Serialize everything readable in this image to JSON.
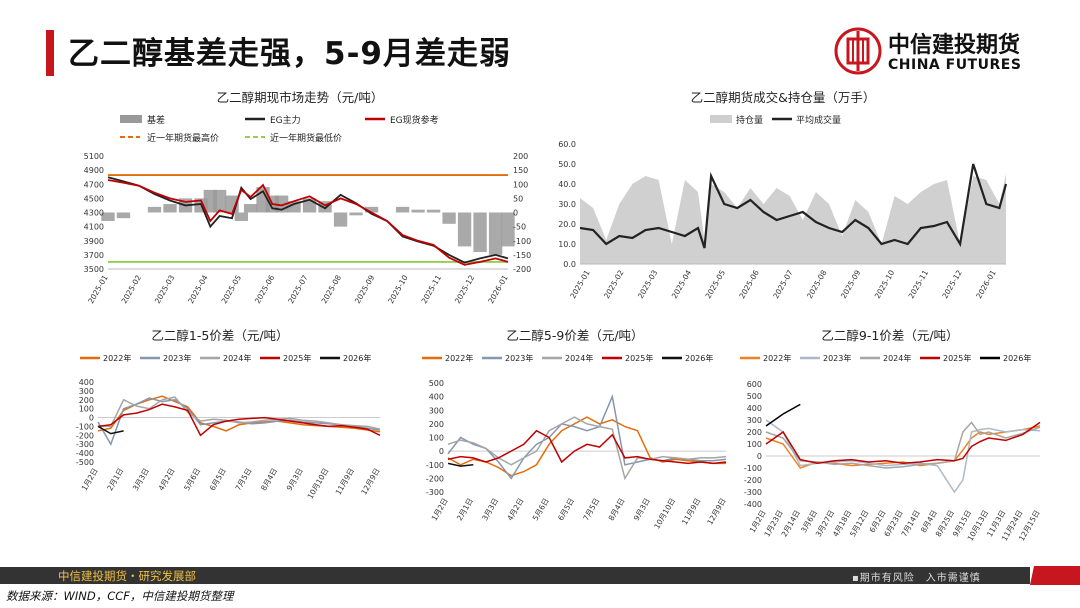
{
  "page": {
    "title": "乙二醇基差走强，5-9月差走弱",
    "logo": {
      "cn": "中信建投期货",
      "en": "CHINA FUTURES"
    },
    "footer": {
      "left": "中信建投期货・研究发展部",
      "right": "▪期市有风险　入市需谨慎"
    },
    "source": "数据来源：WIND，CCF，中信建投期货整理"
  },
  "chart_data": [
    {
      "id": "spot",
      "type": "line",
      "title": "乙二醇期现市场走势（元/吨）",
      "legend": [
        "基差",
        "EG主力",
        "EG现货参考",
        "近一年期货最高价",
        "近一年期货最低价"
      ],
      "x_ticks": [
        "2025-01",
        "2025-02",
        "2025-03",
        "2025-04",
        "2025-05",
        "2025-06",
        "2025-07",
        "2025-08",
        "2025-09",
        "2025-10",
        "2025-11",
        "2025-12",
        "2026-01"
      ],
      "y_left": {
        "min": 3500,
        "max": 5100,
        "ticks": [
          3500,
          3700,
          3900,
          4100,
          4300,
          4500,
          4700,
          4900,
          5100
        ]
      },
      "y_right": {
        "min": -200,
        "max": 200,
        "ticks": [
          -200,
          -150,
          -100,
          -50,
          0,
          50,
          100,
          150,
          200
        ]
      },
      "hline_high": 4830,
      "hline_low": 3600,
      "x": [
        0,
        0.5,
        1,
        1.5,
        2,
        2.5,
        3,
        3.3,
        3.6,
        4,
        4.3,
        4.6,
        5,
        5.3,
        5.6,
        6,
        6.5,
        7,
        7.5,
        8,
        8.5,
        9,
        9.5,
        10,
        10.5,
        11,
        11.5,
        12,
        12.5,
        12.9
      ],
      "eg_main": [
        4800,
        4740,
        4680,
        4560,
        4470,
        4400,
        4420,
        4100,
        4250,
        4220,
        4650,
        4490,
        4600,
        4360,
        4340,
        4420,
        4480,
        4360,
        4550,
        4430,
        4280,
        4180,
        3960,
        3890,
        3830,
        3700,
        3590,
        3650,
        3700,
        3650
      ],
      "eg_spot": [
        4760,
        4720,
        4680,
        4580,
        4500,
        4450,
        4470,
        4180,
        4330,
        4280,
        4620,
        4520,
        4690,
        4420,
        4400,
        4460,
        4530,
        4400,
        4500,
        4420,
        4300,
        4180,
        3980,
        3900,
        3840,
        3660,
        3560,
        3600,
        3650,
        3600
      ],
      "basis": [
        -30,
        -20,
        0,
        20,
        30,
        50,
        50,
        80,
        80,
        60,
        -30,
        30,
        90,
        60,
        60,
        40,
        50,
        40,
        -50,
        -10,
        20,
        0,
        20,
        10,
        10,
        -40,
        -120,
        -140,
        -150,
        -120
      ]
    },
    {
      "id": "volume",
      "type": "area",
      "title": "乙二醇期货成交&持仓量（万手）",
      "legend": [
        "持仓量",
        "平均成交量"
      ],
      "x_ticks": [
        "2025-01",
        "2025-02",
        "2025-03",
        "2025-04",
        "2025-05",
        "2025-06",
        "2025-07",
        "2025-08",
        "2025-09",
        "2025-10",
        "2025-11",
        "2025-12",
        "2026-01"
      ],
      "y": {
        "min": 0,
        "max": 60,
        "ticks": [
          0,
          10,
          20,
          30,
          40,
          50,
          60
        ]
      },
      "x": [
        0,
        0.4,
        0.8,
        1.2,
        1.6,
        2,
        2.4,
        2.8,
        3.2,
        3.6,
        3.8,
        4,
        4.4,
        4.8,
        5.2,
        5.6,
        6,
        6.4,
        6.8,
        7.2,
        7.6,
        8,
        8.4,
        8.8,
        9.2,
        9.6,
        10,
        10.4,
        10.8,
        11.2,
        11.6,
        12,
        12.4,
        12.8,
        13
      ],
      "open_interest": [
        33,
        28,
        12,
        30,
        40,
        44,
        42,
        10,
        42,
        36,
        12,
        40,
        36,
        28,
        38,
        30,
        38,
        34,
        22,
        36,
        30,
        14,
        32,
        26,
        10,
        34,
        30,
        36,
        40,
        42,
        10,
        44,
        42,
        30,
        45
      ],
      "avg_volume": [
        18,
        17,
        10,
        14,
        13,
        17,
        18,
        16,
        14,
        18,
        8,
        44,
        30,
        28,
        32,
        26,
        22,
        24,
        26,
        21,
        18,
        16,
        22,
        18,
        10,
        12,
        10,
        18,
        19,
        21,
        10,
        50,
        30,
        28,
        40
      ]
    },
    {
      "id": "s15",
      "type": "line",
      "title": "乙二醇1-5价差（元/吨）",
      "series": [
        {
          "name": "2022年",
          "color": "#e46c0a"
        },
        {
          "name": "2023年",
          "color": "#8497b0"
        },
        {
          "name": "2024年",
          "color": "#a5a5a5"
        },
        {
          "name": "2025年",
          "color": "#c00000"
        },
        {
          "name": "2026年",
          "color": "#111111"
        }
      ],
      "x_ticks": [
        "1月2日",
        "2月1日",
        "3月3日",
        "4月2日",
        "5月6日",
        "6月5日",
        "7月5日",
        "8月4日",
        "9月3日",
        "10月10日",
        "11月9日",
        "12月9日"
      ],
      "y": {
        "min": -500,
        "max": 400,
        "ticks": [
          -500,
          -400,
          -300,
          -200,
          -100,
          0,
          100,
          200,
          300,
          400
        ]
      },
      "x": [
        0,
        0.5,
        1,
        1.5,
        2,
        2.5,
        3,
        3.5,
        4,
        4.5,
        5,
        5.5,
        6,
        6.5,
        7,
        7.5,
        8,
        8.5,
        9,
        9.5,
        10,
        10.5,
        11
      ],
      "values": {
        "2022年": [
          -150,
          -120,
          80,
          150,
          200,
          240,
          180,
          120,
          -60,
          -100,
          -150,
          -80,
          -60,
          -50,
          -40,
          -60,
          -80,
          -90,
          -100,
          -110,
          -120,
          -140,
          -160
        ],
        "2023年": [
          -50,
          -300,
          100,
          150,
          220,
          180,
          200,
          100,
          -80,
          -60,
          -40,
          -50,
          -70,
          -60,
          -40,
          -30,
          -50,
          -60,
          -70,
          -80,
          -100,
          -120,
          -140
        ],
        "2024年": [
          -100,
          -100,
          200,
          130,
          100,
          200,
          230,
          60,
          -40,
          -20,
          -30,
          -60,
          -50,
          -30,
          -20,
          -10,
          -30,
          -40,
          -60,
          -80,
          -90,
          -100,
          -130
        ],
        "2025年": [
          -100,
          -80,
          30,
          50,
          90,
          150,
          120,
          80,
          -200,
          -80,
          -40,
          -20,
          -10,
          0,
          -20,
          -40,
          -60,
          -80,
          -100,
          -90,
          -110,
          -130,
          -200
        ],
        "2026年": [
          -100,
          -180,
          -150
        ]
      }
    },
    {
      "id": "s59",
      "type": "line",
      "title": "乙二醇5-9价差（元/吨）",
      "series": [
        {
          "name": "2022年",
          "color": "#e46c0a"
        },
        {
          "name": "2023年",
          "color": "#8497b0"
        },
        {
          "name": "2024年",
          "color": "#a5a5a5"
        },
        {
          "name": "2025年",
          "color": "#c00000"
        },
        {
          "name": "2026年",
          "color": "#111111"
        }
      ],
      "x_ticks": [
        "1月2日",
        "2月1日",
        "3月3日",
        "4月2日",
        "5月6日",
        "6月5日",
        "7月5日",
        "8月4日",
        "9月3日",
        "10月10日",
        "11月9日",
        "12月9日"
      ],
      "y": {
        "min": -300,
        "max": 500,
        "ticks": [
          -300,
          -200,
          -100,
          0,
          100,
          200,
          300,
          400,
          500
        ]
      },
      "x": [
        0,
        0.5,
        1,
        1.5,
        2,
        2.5,
        3,
        3.5,
        4,
        4.5,
        5,
        5.5,
        6,
        6.5,
        7,
        7.5,
        8,
        8.5,
        9,
        9.5,
        10,
        10.5,
        11
      ],
      "values": {
        "2022年": [
          -50,
          -100,
          -60,
          -80,
          -120,
          -180,
          -150,
          -100,
          50,
          150,
          200,
          250,
          200,
          230,
          180,
          150,
          -50,
          -80,
          -60,
          -70,
          -80,
          -90,
          -90
        ],
        "2023年": [
          -20,
          100,
          50,
          20,
          -80,
          -200,
          -50,
          50,
          100,
          200,
          180,
          150,
          180,
          400,
          -100,
          -80,
          -60,
          -70,
          -50,
          -60,
          -70,
          -70,
          -60
        ],
        "2024年": [
          50,
          80,
          60,
          20,
          -50,
          -100,
          -50,
          0,
          150,
          200,
          250,
          200,
          180,
          160,
          -200,
          -50,
          -60,
          -40,
          -50,
          -60,
          -50,
          -50,
          -40
        ],
        "2025年": [
          -60,
          -40,
          -50,
          -80,
          -50,
          0,
          50,
          150,
          100,
          -80,
          0,
          50,
          30,
          120,
          -50,
          -40,
          -60,
          -70,
          -80,
          -90,
          -80,
          -90,
          -80
        ],
        "2026年": [
          -90,
          -110,
          -100
        ]
      }
    },
    {
      "id": "s91",
      "type": "line",
      "title": "乙二醇9-1价差（元/吨）",
      "series": [
        {
          "name": "2022年",
          "color": "#f08020"
        },
        {
          "name": "2023年",
          "color": "#adb9ca"
        },
        {
          "name": "2024年",
          "color": "#a5a5a5"
        },
        {
          "name": "2025年",
          "color": "#c00000"
        },
        {
          "name": "2026年",
          "color": "#000000"
        }
      ],
      "x_ticks": [
        "1月2日",
        "1月23日",
        "2月14日",
        "3月6日",
        "3月27日",
        "4月18日",
        "5月12日",
        "6月2日",
        "6月23日",
        "7月14日",
        "8月4日",
        "8月25日",
        "9月15日",
        "10月13日",
        "11月3日",
        "11月24日",
        "12月15日"
      ],
      "y": {
        "min": -400,
        "max": 600,
        "ticks": [
          -400,
          -300,
          -200,
          -100,
          0,
          100,
          200,
          300,
          400,
          500,
          600
        ]
      },
      "x": [
        0,
        1,
        2,
        3,
        4,
        5,
        6,
        7,
        8,
        9,
        10,
        11,
        11.5,
        12,
        12.5,
        13,
        14,
        15,
        16
      ],
      "values": {
        "2022年": [
          150,
          100,
          -100,
          -50,
          -60,
          -80,
          -70,
          -60,
          -50,
          -80,
          -60,
          -40,
          50,
          150,
          200,
          180,
          200,
          220,
          250
        ],
        "2023年": [
          300,
          200,
          -80,
          -60,
          -50,
          -40,
          -60,
          -80,
          -70,
          -60,
          -80,
          -300,
          -200,
          200,
          220,
          230,
          200,
          220,
          210
        ],
        "2024年": [
          200,
          150,
          -40,
          -50,
          -70,
          -60,
          -80,
          -100,
          -90,
          -70,
          -60,
          -40,
          200,
          280,
          180,
          200,
          150,
          190,
          240
        ],
        "2025年": [
          100,
          200,
          -30,
          -60,
          -40,
          -30,
          -50,
          -40,
          -60,
          -50,
          -30,
          -40,
          -20,
          80,
          120,
          150,
          130,
          180,
          280
        ],
        "2026年": [
          250,
          350,
          430
        ]
      }
    }
  ]
}
